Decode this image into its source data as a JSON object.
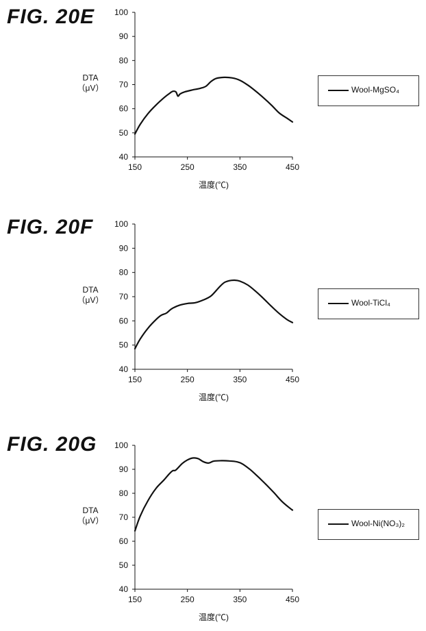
{
  "chart_data": [
    {
      "type": "line",
      "figure_label": "FIG. 20E",
      "xlabel": "温度(℃)",
      "ylabel": [
        "DTA",
        "（μV）"
      ],
      "xlim": [
        150,
        450
      ],
      "ylim": [
        40,
        100
      ],
      "xticks": [
        150,
        250,
        350,
        450
      ],
      "xtick_labels": [
        "150",
        "250",
        "350",
        "450"
      ],
      "yticks": [
        40,
        50,
        60,
        70,
        80,
        90,
        100
      ],
      "ytick_labels": [
        "40",
        "50",
        "60",
        "70",
        "80",
        "90",
        "100"
      ],
      "grid": false,
      "legend_position": "right",
      "series": [
        {
          "name": "Wool-MgSO₄",
          "x": [
            150,
            160,
            175,
            190,
            205,
            215,
            222,
            228,
            232,
            236,
            245,
            260,
            275,
            285,
            295,
            305,
            320,
            335,
            350,
            365,
            380,
            395,
            410,
            425,
            440,
            450
          ],
          "y": [
            49.5,
            53.5,
            58,
            61.5,
            64.5,
            66.2,
            67.2,
            67.0,
            65.2,
            66.1,
            67.0,
            67.8,
            68.5,
            69.3,
            71.3,
            72.6,
            73.0,
            72.8,
            71.8,
            69.8,
            67.3,
            64.5,
            61.5,
            58.2,
            56.0,
            54.5
          ]
        }
      ]
    },
    {
      "type": "line",
      "figure_label": "FIG. 20F",
      "xlabel": "温度(℃)",
      "ylabel": [
        "DTA",
        "（μV）"
      ],
      "xlim": [
        150,
        450
      ],
      "ylim": [
        40,
        100
      ],
      "xticks": [
        150,
        250,
        350,
        450
      ],
      "xtick_labels": [
        "150",
        "250",
        "350",
        "450"
      ],
      "yticks": [
        40,
        50,
        60,
        70,
        80,
        90,
        100
      ],
      "ytick_labels": [
        "40",
        "50",
        "60",
        "70",
        "80",
        "90",
        "100"
      ],
      "grid": false,
      "legend_position": "right",
      "series": [
        {
          "name": "Wool-TiCl₄",
          "x": [
            150,
            160,
            175,
            190,
            200,
            210,
            220,
            235,
            250,
            265,
            280,
            295,
            310,
            320,
            330,
            340,
            350,
            365,
            380,
            395,
            410,
            425,
            440,
            450
          ],
          "y": [
            48.5,
            52.5,
            57,
            60.5,
            62.3,
            63.2,
            65.0,
            66.5,
            67.2,
            67.5,
            68.6,
            70.3,
            73.8,
            75.8,
            76.6,
            76.8,
            76.4,
            74.8,
            72.2,
            69.2,
            66.0,
            63.0,
            60.5,
            59.3
          ]
        }
      ]
    },
    {
      "type": "line",
      "figure_label": "FIG. 20G",
      "xlabel": "温度(℃)",
      "ylabel": [
        "DTA",
        "（μV）"
      ],
      "xlim": [
        150,
        450
      ],
      "ylim": [
        40,
        100
      ],
      "xticks": [
        150,
        250,
        350,
        450
      ],
      "xtick_labels": [
        "150",
        "250",
        "350",
        "450"
      ],
      "yticks": [
        40,
        50,
        60,
        70,
        80,
        90,
        100
      ],
      "ytick_labels": [
        "40",
        "50",
        "60",
        "70",
        "80",
        "90",
        "100"
      ],
      "grid": false,
      "legend_position": "right",
      "series": [
        {
          "name": "Wool-Ni(NO₃)₂",
          "x": [
            150,
            160,
            175,
            190,
            205,
            215,
            222,
            228,
            240,
            250,
            260,
            270,
            280,
            290,
            300,
            315,
            330,
            345,
            355,
            370,
            385,
            400,
            415,
            430,
            445,
            450
          ],
          "y": [
            64.3,
            70.5,
            77,
            82,
            85.5,
            88.0,
            89.4,
            89.7,
            92.4,
            93.9,
            94.7,
            94.5,
            93.2,
            92.6,
            93.4,
            93.6,
            93.5,
            93.1,
            92.2,
            89.8,
            86.8,
            83.6,
            80.2,
            76.6,
            73.8,
            73.0
          ]
        }
      ]
    }
  ]
}
